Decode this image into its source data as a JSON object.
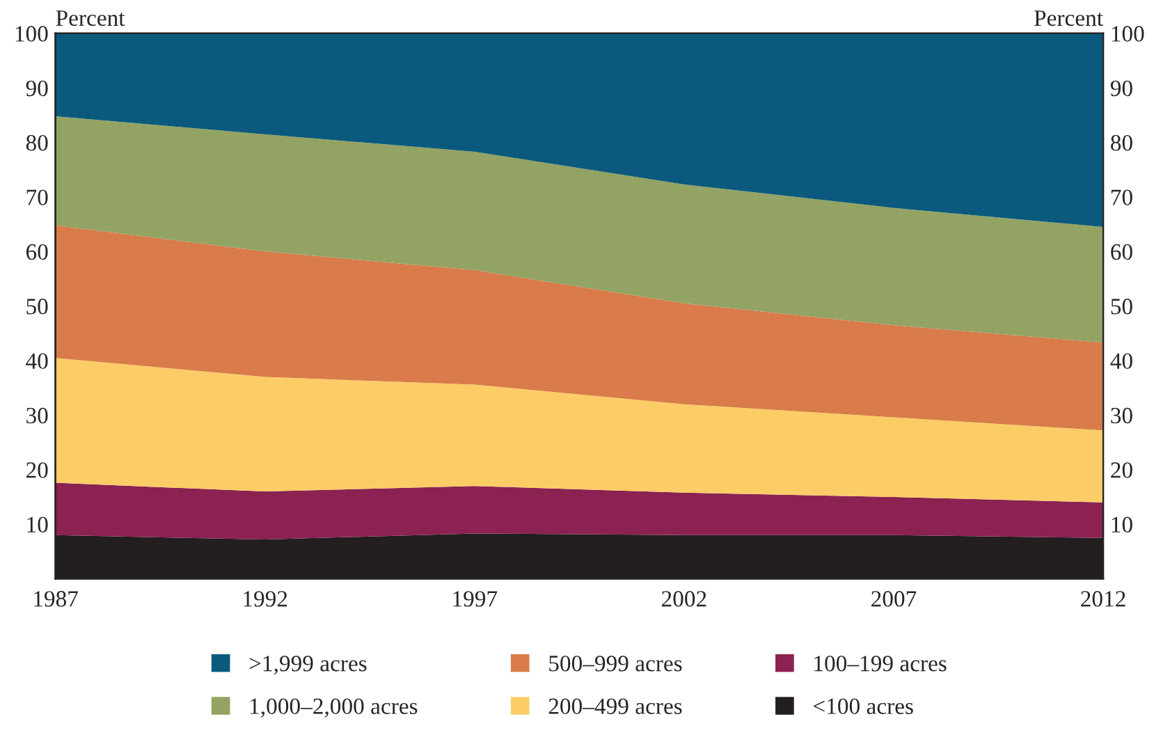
{
  "chart_data": {
    "type": "area",
    "stacked": true,
    "ylabel": "Percent",
    "y2label": "Percent",
    "x": [
      1987,
      1992,
      1997,
      2002,
      2007,
      2012
    ],
    "xlim": [
      1987,
      2012
    ],
    "xticks": [
      1987,
      1992,
      1997,
      2002,
      2007,
      2012
    ],
    "ylim": [
      0,
      100
    ],
    "yticks": [
      10,
      20,
      30,
      40,
      50,
      60,
      70,
      80,
      90,
      100
    ],
    "y2lim": [
      0,
      100
    ],
    "y2ticks": [
      10,
      20,
      30,
      40,
      50,
      60,
      70,
      80,
      90,
      100
    ],
    "grid": false,
    "legend": "bottom",
    "series": [
      {
        "name": "<100 acres",
        "color": "#231f20",
        "values": [
          8,
          7.2,
          8.3,
          8,
          8,
          7.5
        ]
      },
      {
        "name": "100–199 acres",
        "color": "#8b2252",
        "values": [
          9.6,
          8.8,
          8.7,
          7.8,
          7,
          6.5
        ]
      },
      {
        "name": "200–499 acres",
        "color": "#fccd67",
        "values": [
          22.9,
          21,
          18.6,
          16.2,
          14.6,
          13.2
        ]
      },
      {
        "name": "500–999 acres",
        "color": "#d97b4a",
        "values": [
          24.3,
          23,
          21,
          18.5,
          16.9,
          16.1
        ]
      },
      {
        "name": "1,000–2,000 acres",
        "color": "#93a363",
        "values": [
          20,
          21.5,
          21.7,
          21.8,
          21.5,
          21.2
        ]
      },
      {
        "name": ">1,999 acres",
        "color": "#0b5a7d",
        "values": [
          15.2,
          18.5,
          21.7,
          27.7,
          32,
          35.5
        ]
      }
    ]
  }
}
